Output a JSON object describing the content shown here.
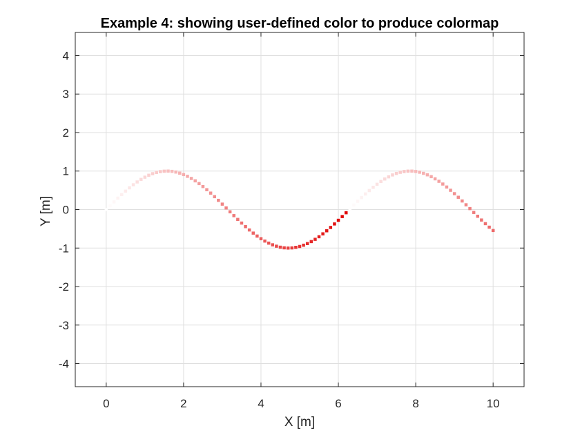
{
  "chart_data": {
    "type": "scatter",
    "title": "Example 4: showing user-defined color to produce colormap",
    "xlabel": "X [m]",
    "ylabel": "Y [m]",
    "xlim": [
      -0.8,
      10.8
    ],
    "ylim": [
      -4.6,
      4.6
    ],
    "xticks": [
      0,
      2,
      4,
      6,
      8,
      10
    ],
    "yticks": [
      -4,
      -3,
      -2,
      -1,
      0,
      1,
      2,
      3,
      4
    ],
    "grid": true,
    "marker": "square",
    "colormap": {
      "from": "#ffffff",
      "to": "#e00000"
    },
    "points": [
      {
        "x": 0.0,
        "y": 0.0,
        "c": 0.0
      },
      {
        "x": 0.1,
        "y": 0.1,
        "c": 0.1
      },
      {
        "x": 0.2,
        "y": 0.199,
        "c": 0.2
      },
      {
        "x": 0.3,
        "y": 0.296,
        "c": 0.3
      },
      {
        "x": 0.4,
        "y": 0.389,
        "c": 0.4
      },
      {
        "x": 0.5,
        "y": 0.479,
        "c": 0.5
      },
      {
        "x": 0.6,
        "y": 0.565,
        "c": 0.6
      },
      {
        "x": 0.7,
        "y": 0.644,
        "c": 0.7
      },
      {
        "x": 0.8,
        "y": 0.717,
        "c": 0.8
      },
      {
        "x": 0.9,
        "y": 0.783,
        "c": 0.9
      },
      {
        "x": 1.0,
        "y": 0.841,
        "c": 1.0
      },
      {
        "x": 1.1,
        "y": 0.891,
        "c": 1.1
      },
      {
        "x": 1.2,
        "y": 0.932,
        "c": 1.2
      },
      {
        "x": 1.3,
        "y": 0.964,
        "c": 1.3
      },
      {
        "x": 1.4,
        "y": 0.985,
        "c": 1.4
      },
      {
        "x": 1.5,
        "y": 0.997,
        "c": 1.5
      },
      {
        "x": 1.6,
        "y": 1.0,
        "c": 1.6
      },
      {
        "x": 1.7,
        "y": 0.992,
        "c": 1.7
      },
      {
        "x": 1.8,
        "y": 0.974,
        "c": 1.8
      },
      {
        "x": 1.9,
        "y": 0.946,
        "c": 1.9
      },
      {
        "x": 2.0,
        "y": 0.909,
        "c": 2.0
      },
      {
        "x": 2.1,
        "y": 0.863,
        "c": 2.1
      },
      {
        "x": 2.2,
        "y": 0.808,
        "c": 2.2
      },
      {
        "x": 2.3,
        "y": 0.746,
        "c": 2.3
      },
      {
        "x": 2.4,
        "y": 0.675,
        "c": 2.4
      },
      {
        "x": 2.5,
        "y": 0.598,
        "c": 2.5
      },
      {
        "x": 2.6,
        "y": 0.516,
        "c": 2.6
      },
      {
        "x": 2.7,
        "y": 0.427,
        "c": 2.7
      },
      {
        "x": 2.8,
        "y": 0.335,
        "c": 2.8
      },
      {
        "x": 2.9,
        "y": 0.239,
        "c": 2.9
      },
      {
        "x": 3.0,
        "y": 0.141,
        "c": 3.0
      },
      {
        "x": 3.1,
        "y": 0.042,
        "c": 3.1
      },
      {
        "x": 3.2,
        "y": -0.058,
        "c": 3.2
      },
      {
        "x": 3.3,
        "y": -0.158,
        "c": 3.3
      },
      {
        "x": 3.4,
        "y": -0.256,
        "c": 3.4
      },
      {
        "x": 3.5,
        "y": -0.351,
        "c": 3.5
      },
      {
        "x": 3.6,
        "y": -0.443,
        "c": 3.6
      },
      {
        "x": 3.7,
        "y": -0.53,
        "c": 3.7
      },
      {
        "x": 3.8,
        "y": -0.612,
        "c": 3.8
      },
      {
        "x": 3.9,
        "y": -0.688,
        "c": 3.9
      },
      {
        "x": 4.0,
        "y": -0.757,
        "c": 4.0
      },
      {
        "x": 4.1,
        "y": -0.818,
        "c": 4.1
      },
      {
        "x": 4.2,
        "y": -0.872,
        "c": 4.2
      },
      {
        "x": 4.3,
        "y": -0.916,
        "c": 4.3
      },
      {
        "x": 4.4,
        "y": -0.952,
        "c": 4.4
      },
      {
        "x": 4.5,
        "y": -0.978,
        "c": 4.5
      },
      {
        "x": 4.6,
        "y": -0.994,
        "c": 4.6
      },
      {
        "x": 4.7,
        "y": -1.0,
        "c": 4.7
      },
      {
        "x": 4.8,
        "y": -0.996,
        "c": 4.8
      },
      {
        "x": 4.9,
        "y": -0.982,
        "c": 4.9
      },
      {
        "x": 5.0,
        "y": -0.959,
        "c": 5.0
      },
      {
        "x": 5.1,
        "y": -0.926,
        "c": 5.1
      },
      {
        "x": 5.2,
        "y": -0.883,
        "c": 5.2
      },
      {
        "x": 5.3,
        "y": -0.832,
        "c": 5.3
      },
      {
        "x": 5.4,
        "y": -0.773,
        "c": 5.4
      },
      {
        "x": 5.5,
        "y": -0.706,
        "c": 5.5
      },
      {
        "x": 5.6,
        "y": -0.631,
        "c": 5.6
      },
      {
        "x": 5.7,
        "y": -0.551,
        "c": 5.7
      },
      {
        "x": 5.8,
        "y": -0.465,
        "c": 5.8
      },
      {
        "x": 5.9,
        "y": -0.374,
        "c": 5.9
      },
      {
        "x": 6.0,
        "y": -0.279,
        "c": 6.0
      },
      {
        "x": 6.1,
        "y": -0.182,
        "c": 6.1
      },
      {
        "x": 6.2,
        "y": -0.083,
        "c": 6.2
      },
      {
        "x": 6.3,
        "y": 0.017,
        "c": 6.3
      },
      {
        "x": 6.4,
        "y": 0.117,
        "c": 6.4
      },
      {
        "x": 6.5,
        "y": 0.215,
        "c": 6.5
      },
      {
        "x": 6.6,
        "y": 0.312,
        "c": 6.6
      },
      {
        "x": 6.7,
        "y": 0.405,
        "c": 6.7
      },
      {
        "x": 6.8,
        "y": 0.494,
        "c": 6.8
      },
      {
        "x": 6.9,
        "y": 0.578,
        "c": 6.9
      },
      {
        "x": 7.0,
        "y": 0.657,
        "c": 7.0
      },
      {
        "x": 7.1,
        "y": 0.729,
        "c": 7.1
      },
      {
        "x": 7.2,
        "y": 0.794,
        "c": 7.2
      },
      {
        "x": 7.3,
        "y": 0.85,
        "c": 7.3
      },
      {
        "x": 7.4,
        "y": 0.899,
        "c": 7.4
      },
      {
        "x": 7.5,
        "y": 0.938,
        "c": 7.5
      },
      {
        "x": 7.6,
        "y": 0.968,
        "c": 7.6
      },
      {
        "x": 7.7,
        "y": 0.988,
        "c": 7.7
      },
      {
        "x": 7.8,
        "y": 0.998,
        "c": 7.8
      },
      {
        "x": 7.9,
        "y": 0.999,
        "c": 7.9
      },
      {
        "x": 8.0,
        "y": 0.989,
        "c": 8.0
      },
      {
        "x": 8.1,
        "y": 0.97,
        "c": 8.1
      },
      {
        "x": 8.2,
        "y": 0.941,
        "c": 8.2
      },
      {
        "x": 8.3,
        "y": 0.902,
        "c": 8.3
      },
      {
        "x": 8.4,
        "y": 0.855,
        "c": 8.4
      },
      {
        "x": 8.5,
        "y": 0.798,
        "c": 8.5
      },
      {
        "x": 8.6,
        "y": 0.734,
        "c": 8.6
      },
      {
        "x": 8.7,
        "y": 0.663,
        "c": 8.7
      },
      {
        "x": 8.8,
        "y": 0.585,
        "c": 8.8
      },
      {
        "x": 8.9,
        "y": 0.501,
        "c": 8.9
      },
      {
        "x": 9.0,
        "y": 0.412,
        "c": 9.0
      },
      {
        "x": 9.1,
        "y": 0.319,
        "c": 9.1
      },
      {
        "x": 9.2,
        "y": 0.223,
        "c": 9.2
      },
      {
        "x": 9.3,
        "y": 0.124,
        "c": 9.3
      },
      {
        "x": 9.4,
        "y": 0.025,
        "c": 9.4
      },
      {
        "x": 9.5,
        "y": -0.075,
        "c": 9.5
      },
      {
        "x": 9.6,
        "y": -0.174,
        "c": 9.6
      },
      {
        "x": 9.7,
        "y": -0.272,
        "c": 9.7
      },
      {
        "x": 9.8,
        "y": -0.366,
        "c": 9.8
      },
      {
        "x": 9.9,
        "y": -0.458,
        "c": 9.9
      },
      {
        "x": 10.0,
        "y": -0.544,
        "c": 10.0
      }
    ]
  }
}
